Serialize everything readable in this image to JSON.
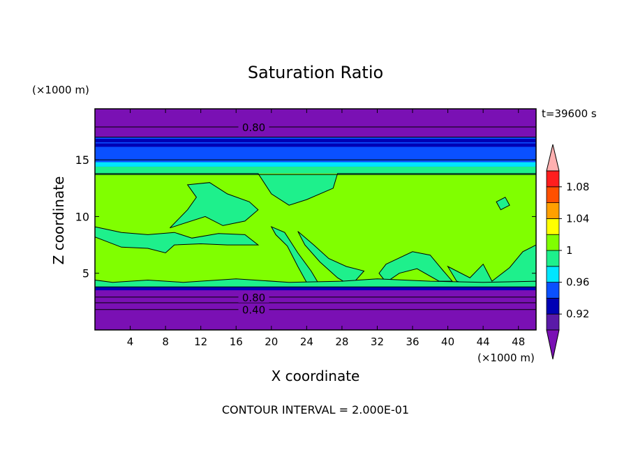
{
  "chart_data": {
    "type": "heatmap",
    "title": "Saturation Ratio",
    "xlabel": "X coordinate",
    "ylabel": "Z coordinate",
    "x_unit_label": "(×1000 m)",
    "y_unit_label": "(×1000 m)",
    "time_label": "t=39600 s",
    "footer": "CONTOUR INTERVAL = 2.000E-01",
    "xlim": [
      0,
      50
    ],
    "ylim": [
      0,
      19.5
    ],
    "x_ticks": [
      4,
      8,
      12,
      16,
      20,
      24,
      28,
      32,
      36,
      40,
      44,
      48
    ],
    "y_ticks": [
      5,
      10,
      15
    ],
    "contour_labels": [
      {
        "text": "0.80",
        "x": 18,
        "y": 17.9
      },
      {
        "text": "0.80",
        "x": 18,
        "y": 2.9
      },
      {
        "text": "0.40",
        "x": 18,
        "y": 1.8
      }
    ],
    "colorbar": {
      "levels": [
        0.9,
        0.92,
        0.94,
        0.96,
        0.98,
        1.0,
        1.02,
        1.04,
        1.06,
        1.08,
        1.1
      ],
      "tick_labels": [
        "0.92",
        "0.96",
        "1",
        "1.04",
        "1.08"
      ],
      "tick_values": [
        0.92,
        0.96,
        1.0,
        1.04,
        1.08
      ],
      "colors": [
        "#5a1aa8",
        "#0000b4",
        "#0a50ff",
        "#00e6ff",
        "#1ef08c",
        "#80ff00",
        "#ffff00",
        "#ffa000",
        "#ff5000",
        "#ff1e1e"
      ],
      "under_color": "#7a10b4",
      "over_color": "#ffb0b0"
    },
    "background_color": "#7a10b4",
    "z_bands": [
      {
        "from": 0.0,
        "to": 3.5,
        "value": "<0.90"
      },
      {
        "from": 3.5,
        "to": 3.8,
        "value": "0.92-0.94"
      },
      {
        "from": 3.8,
        "to": 13.8,
        "value": "1.00-1.02"
      },
      {
        "from": 13.8,
        "to": 14.4,
        "value": "0.98-1.00"
      },
      {
        "from": 14.4,
        "to": 14.8,
        "value": "0.96-0.98"
      },
      {
        "from": 14.8,
        "to": 17.0,
        "value": "0.94-0.96"
      },
      {
        "from": 17.0,
        "to": 19.5,
        "value": "<0.90"
      }
    ],
    "regions_0.98": [
      {
        "name": "cloud-top",
        "points": [
          [
            0,
            13.8
          ],
          [
            18.5,
            13.8
          ],
          [
            20,
            12
          ],
          [
            22,
            11
          ],
          [
            24,
            11.5
          ],
          [
            27,
            12.5
          ],
          [
            27.5,
            13.8
          ],
          [
            50,
            13.8
          ],
          [
            50,
            13.7
          ],
          [
            0,
            13.7
          ]
        ]
      },
      {
        "name": "upper-left-plume",
        "points": [
          [
            10.5,
            12.8
          ],
          [
            13,
            13
          ],
          [
            15,
            12
          ],
          [
            17.5,
            11.3
          ],
          [
            18.5,
            10.6
          ],
          [
            17,
            9.6
          ],
          [
            14.5,
            9.2
          ],
          [
            12.5,
            10
          ],
          [
            8.5,
            9
          ],
          [
            10.5,
            10.6
          ],
          [
            11.5,
            11.7
          ]
        ]
      },
      {
        "name": "left-layer",
        "points": [
          [
            0,
            9.1
          ],
          [
            3,
            8.6
          ],
          [
            6,
            8.4
          ],
          [
            9,
            8.6
          ],
          [
            11,
            8.1
          ],
          [
            14,
            8.5
          ],
          [
            17,
            8.4
          ],
          [
            18.5,
            7.5
          ],
          [
            15,
            7.5
          ],
          [
            12,
            7.6
          ],
          [
            9,
            7.5
          ],
          [
            8,
            6.8
          ],
          [
            6,
            7.2
          ],
          [
            3,
            7.3
          ],
          [
            0,
            8.2
          ]
        ]
      },
      {
        "name": "mid-wave-1",
        "points": [
          [
            20,
            9.1
          ],
          [
            21.5,
            8.6
          ],
          [
            23,
            6.8
          ],
          [
            24.5,
            5.2
          ],
          [
            25.5,
            3.9
          ],
          [
            24.2,
            3.9
          ],
          [
            23,
            5.6
          ],
          [
            21.8,
            7.4
          ],
          [
            20.5,
            8.4
          ]
        ]
      },
      {
        "name": "mid-wave-2",
        "points": [
          [
            23,
            8.7
          ],
          [
            24.8,
            7.5
          ],
          [
            26.5,
            6.3
          ],
          [
            28.5,
            5.6
          ],
          [
            30.5,
            5.2
          ],
          [
            29,
            3.9
          ],
          [
            27.5,
            4.6
          ],
          [
            25.5,
            6
          ],
          [
            23.8,
            7.5
          ]
        ]
      },
      {
        "name": "right-arc",
        "points": [
          [
            33,
            5.8
          ],
          [
            36,
            6.9
          ],
          [
            38,
            6.6
          ],
          [
            39.5,
            5.2
          ],
          [
            40.5,
            4.3
          ],
          [
            39,
            4.3
          ],
          [
            36.5,
            5.4
          ],
          [
            34.5,
            5
          ],
          [
            33,
            4.2
          ],
          [
            32.2,
            5
          ]
        ]
      },
      {
        "name": "right-waves",
        "points": [
          [
            40,
            5.6
          ],
          [
            42.5,
            4.6
          ],
          [
            44,
            5.8
          ],
          [
            45,
            4.3
          ],
          [
            47,
            5.5
          ],
          [
            48.5,
            6.9
          ],
          [
            50,
            7.5
          ],
          [
            50,
            4.2
          ],
          [
            48,
            4.2
          ],
          [
            46,
            3.9
          ],
          [
            43,
            3.9
          ],
          [
            41,
            4.3
          ]
        ]
      },
      {
        "name": "right-blob",
        "points": [
          [
            45.5,
            11.3
          ],
          [
            46.5,
            11.7
          ],
          [
            47,
            11
          ],
          [
            46,
            10.6
          ]
        ]
      },
      {
        "name": "surface-band",
        "points": [
          [
            0,
            3.8
          ],
          [
            50,
            3.8
          ],
          [
            50,
            4.3
          ],
          [
            44,
            4.2
          ],
          [
            38,
            4.3
          ],
          [
            32,
            4.5
          ],
          [
            28,
            4.3
          ],
          [
            22,
            4.2
          ],
          [
            16,
            4.5
          ],
          [
            10,
            4.2
          ],
          [
            6,
            4.4
          ],
          [
            2,
            4.2
          ],
          [
            0,
            4.4
          ]
        ]
      }
    ],
    "contour_lines": [
      {
        "name": "contour-080-upper",
        "y": 17.9
      },
      {
        "name": "contour-upper-2",
        "y": 17.0
      },
      {
        "name": "contour-upper-3",
        "y": 15.0
      },
      {
        "name": "contour-080-lower",
        "y": 2.9
      },
      {
        "name": "contour-lower-2",
        "y": 2.4
      },
      {
        "name": "contour-040-lower",
        "y": 1.8
      }
    ]
  }
}
